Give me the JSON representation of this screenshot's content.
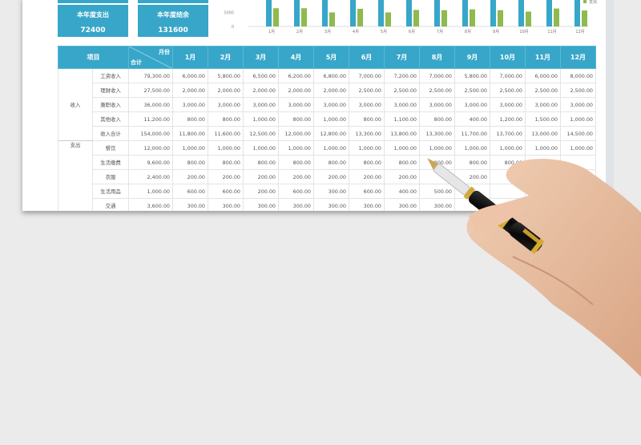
{
  "cards": [
    {
      "label": "本年度支出",
      "value": "72400"
    },
    {
      "label": "本年度结余",
      "value": "131600"
    }
  ],
  "chart_data": {
    "type": "bar",
    "categories": [
      "1月",
      "2月",
      "3月",
      "4月",
      "5月",
      "6月",
      "7月",
      "8月",
      "9月",
      "10月",
      "11月",
      "12月"
    ],
    "series": [
      {
        "values": [
          11800,
          11600,
          12500,
          12000,
          12800,
          13300,
          13800,
          13300,
          11700,
          13700,
          13000,
          14500
        ],
        "color": "#37a6c9"
      },
      {
        "name": "支出",
        "values": [
          6500,
          6500,
          5000,
          6300,
          5000,
          5900,
          5800,
          6100,
          5800,
          5300,
          6400,
          5700
        ],
        "color": "#8fba4e"
      }
    ],
    "yticks": [
      "0",
      "5000"
    ],
    "legend": "right"
  },
  "table": {
    "header": {
      "item": "项目",
      "month": "月份",
      "total": "合计",
      "months": [
        "1月",
        "2月",
        "3月",
        "4月",
        "5月",
        "6月",
        "7月",
        "8月",
        "9月",
        "10月",
        "11月",
        "12月"
      ]
    },
    "groups": [
      {
        "name": "收入",
        "rows": [
          {
            "label": "工资收入",
            "total": "79,300.00",
            "values": [
              "6,000.00",
              "5,800.00",
              "6,500.00",
              "6,200.00",
              "6,800.00",
              "7,000.00",
              "7,200.00",
              "7,000.00",
              "5,800.00",
              "7,000.00",
              "6,000.00",
              "8,000.00"
            ]
          },
          {
            "label": "理财收入",
            "total": "27,500.00",
            "values": [
              "2,000.00",
              "2,000.00",
              "2,000.00",
              "2,000.00",
              "2,000.00",
              "2,500.00",
              "2,500.00",
              "2,500.00",
              "2,500.00",
              "2,500.00",
              "2,500.00",
              "2,500.00"
            ]
          },
          {
            "label": "兼职收入",
            "total": "36,000.00",
            "values": [
              "3,000.00",
              "3,000.00",
              "3,000.00",
              "3,000.00",
              "3,000.00",
              "3,000.00",
              "3,000.00",
              "3,000.00",
              "3,000.00",
              "3,000.00",
              "3,000.00",
              "3,000.00"
            ]
          },
          {
            "label": "其他收入",
            "total": "11,200.00",
            "values": [
              "800.00",
              "800.00",
              "1,000.00",
              "800.00",
              "1,000.00",
              "800.00",
              "1,100.00",
              "800.00",
              "400.00",
              "1,200.00",
              "1,500.00",
              "1,000.00"
            ]
          },
          {
            "label": "收入合计",
            "total": "154,000.00",
            "values": [
              "11,800.00",
              "11,600.00",
              "12,500.00",
              "12,000.00",
              "12,800.00",
              "13,300.00",
              "13,800.00",
              "13,300.00",
              "11,700.00",
              "13,700.00",
              "13,000.00",
              "14,500.00"
            ]
          }
        ]
      },
      {
        "name": "支出",
        "rows": [
          {
            "label": "餐饮",
            "total": "12,000.00",
            "values": [
              "1,000.00",
              "1,000.00",
              "1,000.00",
              "1,000.00",
              "1,000.00",
              "1,000.00",
              "1,000.00",
              "1,000.00",
              "1,000.00",
              "1,000.00",
              "1,000.00",
              "1,000.00"
            ]
          },
          {
            "label": "生活缴费",
            "total": "9,600.00",
            "values": [
              "800.00",
              "800.00",
              "800.00",
              "800.00",
              "800.00",
              "800.00",
              "800.00",
              "800.00",
              "800.00",
              "800.00",
              "",
              ""
            ]
          },
          {
            "label": "衣服",
            "total": "2,400.00",
            "values": [
              "200.00",
              "200.00",
              "200.00",
              "200.00",
              "200.00",
              "200.00",
              "200.00",
              "200",
              "200.00",
              "",
              "",
              ""
            ]
          },
          {
            "label": "生活用品",
            "total": "1,000.00",
            "values": [
              "600.00",
              "600.00",
              "200.00",
              "600.00",
              "300.00",
              "600.00",
              "400.00",
              "500.00",
              "",
              "",
              "",
              ""
            ]
          },
          {
            "label": "交通",
            "total": "3,600.00",
            "values": [
              "300.00",
              "300.00",
              "300.00",
              "300.00",
              "300.00",
              "300.00",
              "300.00",
              "300.00",
              "",
              "",
              "",
              ""
            ]
          }
        ]
      }
    ]
  }
}
